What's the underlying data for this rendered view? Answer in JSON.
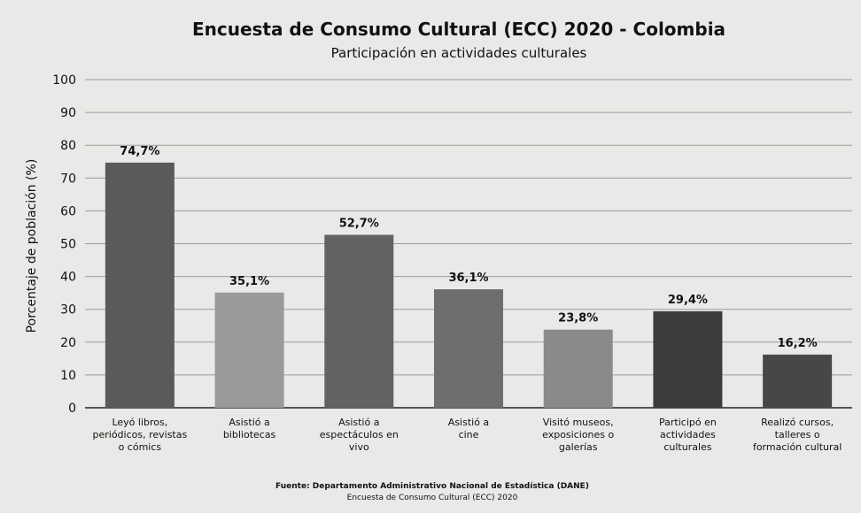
{
  "chart_data": {
    "type": "bar",
    "title": "Encuesta de Consumo Cultural (ECC) 2020 - Colombia",
    "subtitle": "Participación en actividades culturales",
    "ylabel": "Porcentaje de población (%)",
    "xlabel": "",
    "ylim": [
      0,
      100
    ],
    "yticks": [
      0,
      10,
      20,
      30,
      40,
      50,
      60,
      70,
      80,
      90,
      100
    ],
    "grid": true,
    "categories": [
      [
        "Leyó libros,",
        "periódicos, revistas",
        "o cómics"
      ],
      [
        "Asistió a",
        "bibliotecas"
      ],
      [
        "Asistió a",
        "espectáculos en",
        "vivo"
      ],
      [
        "Asistió a",
        "cine"
      ],
      [
        "Visitó museos,",
        "exposiciones o",
        "galerías"
      ],
      [
        "Participó en",
        "actividades",
        "culturales"
      ],
      [
        "Realizó cursos,",
        "talleres o",
        "formación cultural"
      ]
    ],
    "values": [
      74.7,
      35.1,
      52.7,
      36.1,
      23.8,
      29.4,
      16.2
    ],
    "value_labels": [
      "74,7%",
      "35,1%",
      "52,7%",
      "36,1%",
      "23,8%",
      "29,4%",
      "16,2%"
    ],
    "colors": [
      "#5a5a5a",
      "#9a9a9a",
      "#626262",
      "#6e6e6e",
      "#8a8a8a",
      "#3c3c3c",
      "#474747"
    ],
    "source_lines": [
      "Fuente: Departamento Administrativo Nacional de Estadística (DANE)",
      "Encuesta de Consumo Cultural (ECC) 2020"
    ]
  }
}
